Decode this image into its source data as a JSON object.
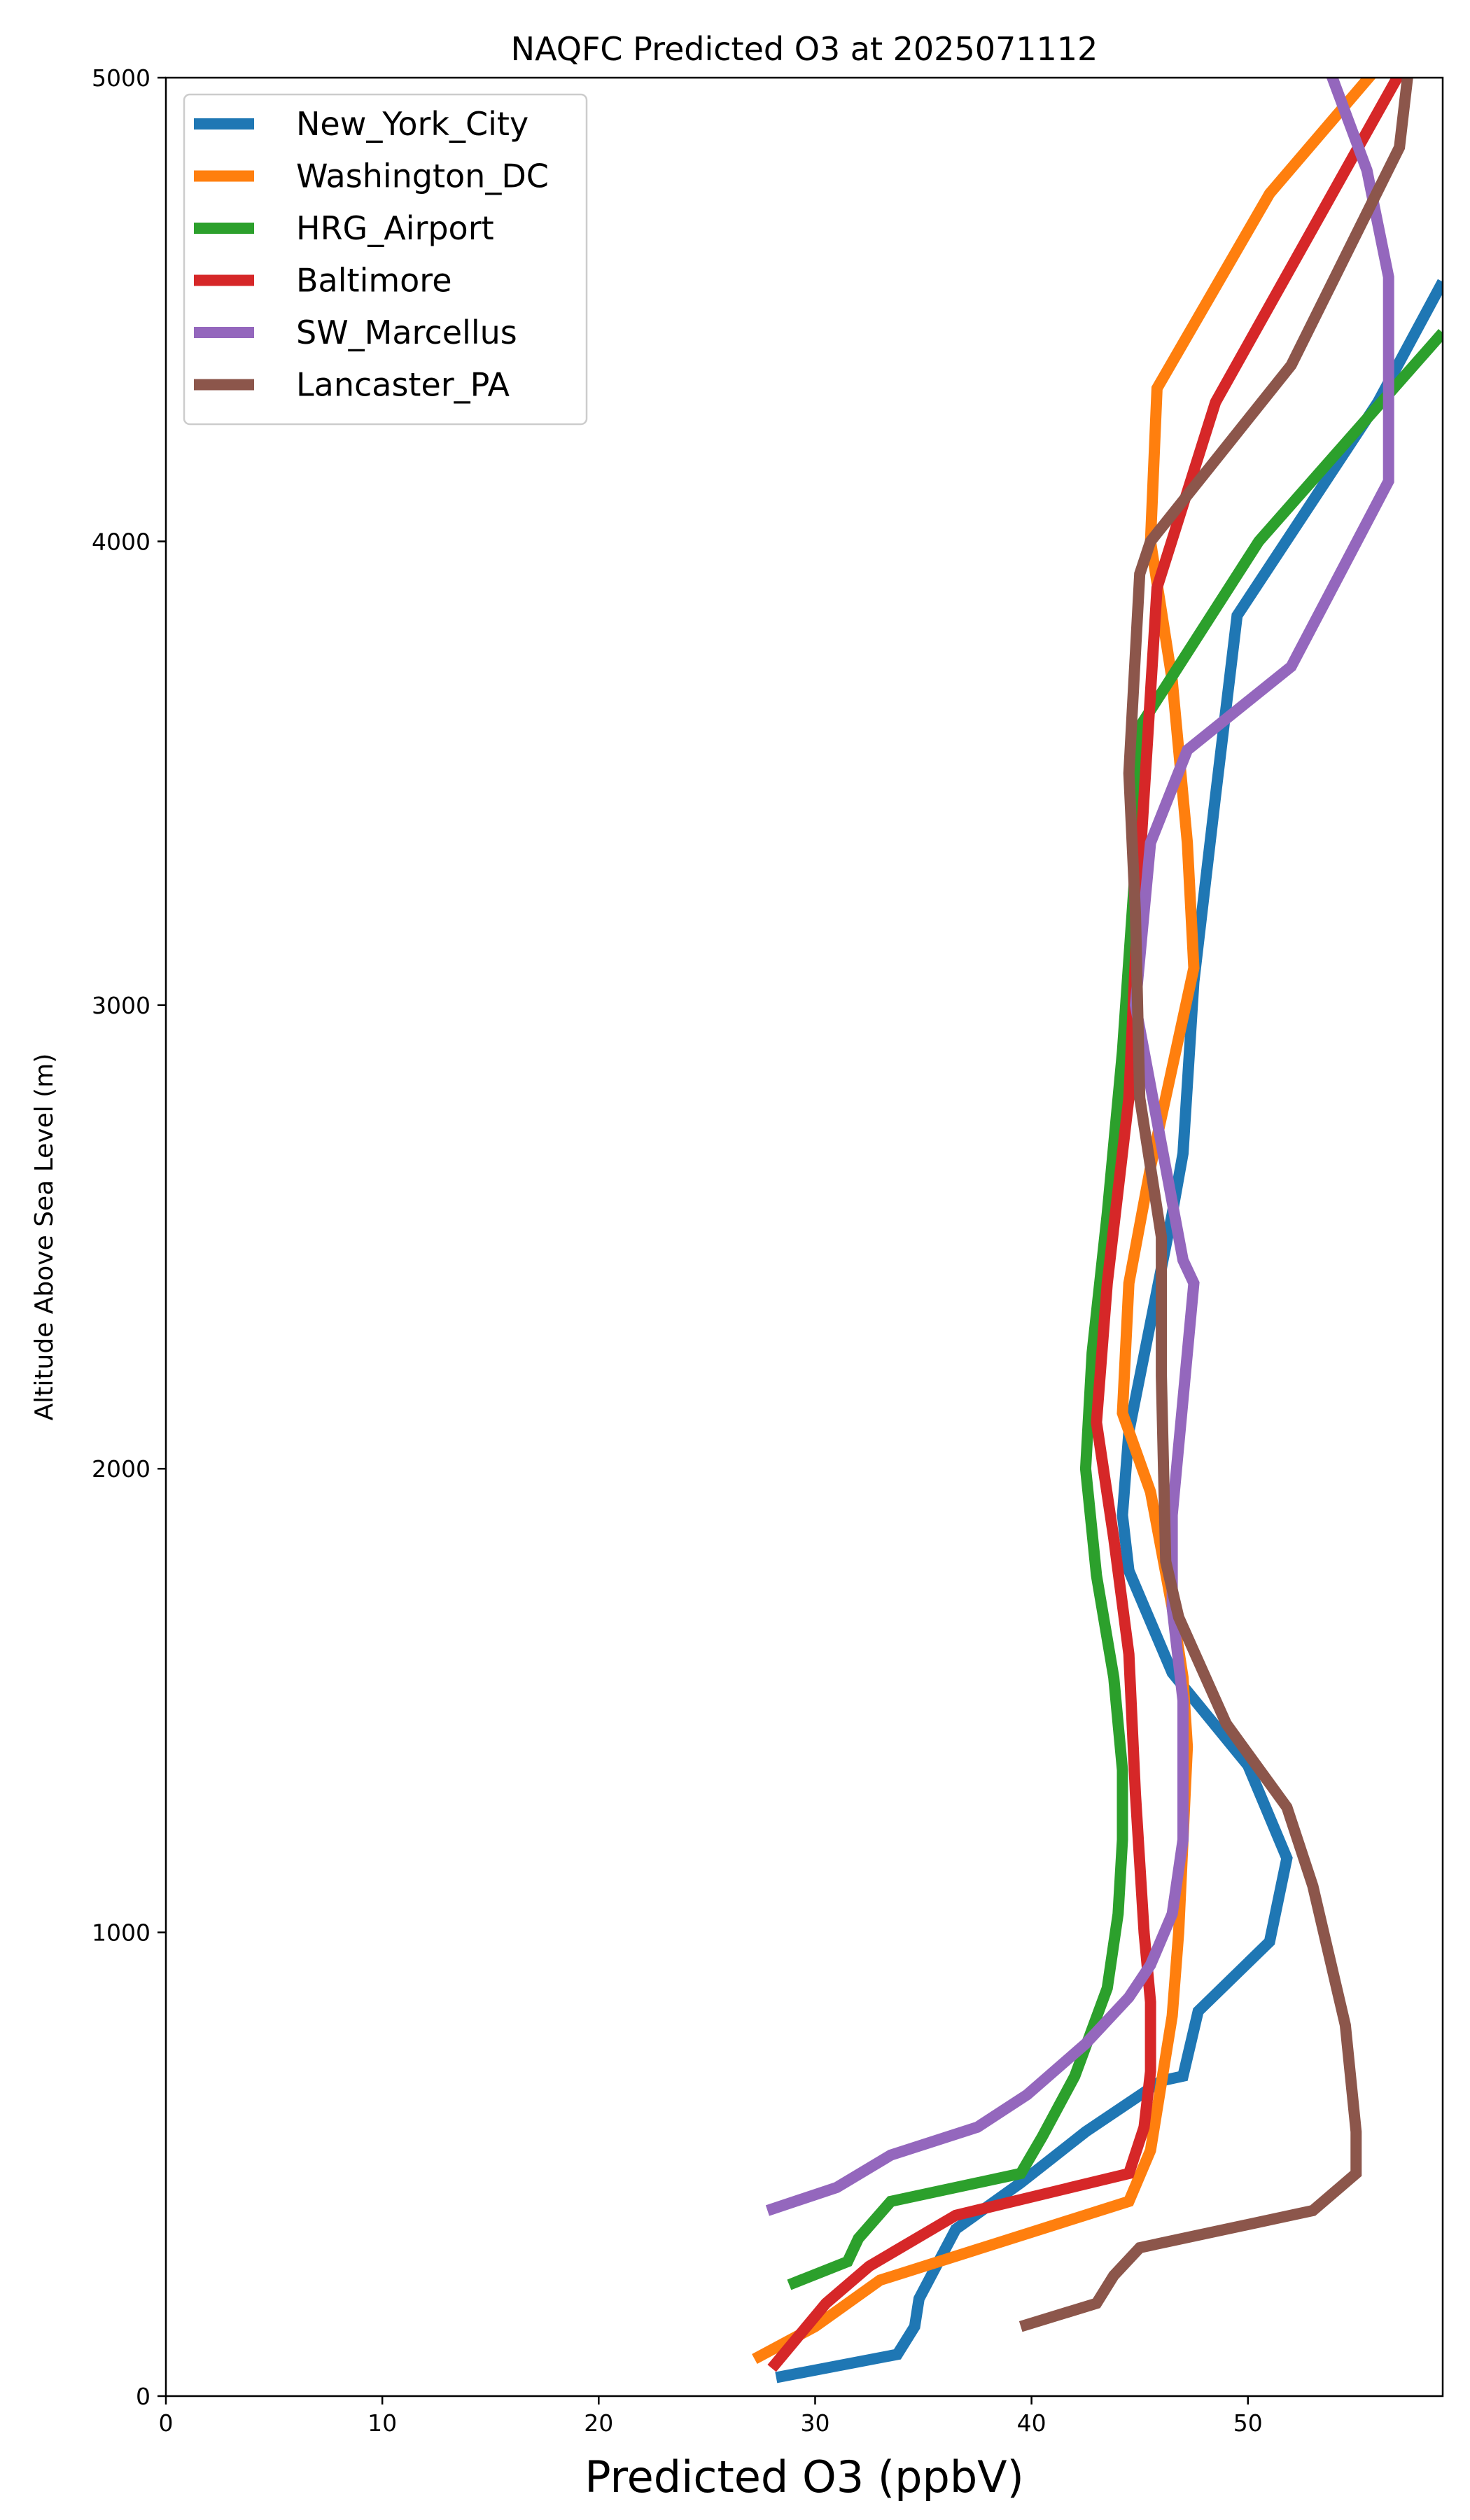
{
  "chart_data": {
    "type": "line",
    "title": "NAQFC Predicted O3 at 2025071112",
    "xlabel": "Predicted O3 (ppbV)",
    "ylabel": "Altitude Above Sea Level (m)",
    "xlim": [
      0,
      59
    ],
    "ylim": [
      0,
      5000
    ],
    "xticks": [
      0,
      10,
      20,
      30,
      40,
      50
    ],
    "yticks": [
      0,
      1000,
      2000,
      3000,
      4000,
      5000
    ],
    "grid": false,
    "legend_position": "upper-left",
    "series": [
      {
        "name": "New_York_City",
        "color": "#1f77b4",
        "points": [
          [
            28.2,
            40
          ],
          [
            33.8,
            90
          ],
          [
            34.6,
            150
          ],
          [
            34.8,
            210
          ],
          [
            36.5,
            360
          ],
          [
            39.5,
            460
          ],
          [
            42.5,
            570
          ],
          [
            46.0,
            680
          ],
          [
            47.0,
            690
          ],
          [
            47.7,
            830
          ],
          [
            51.0,
            980
          ],
          [
            51.8,
            1160
          ],
          [
            50.0,
            1360
          ],
          [
            46.5,
            1560
          ],
          [
            44.5,
            1780
          ],
          [
            44.2,
            1900
          ],
          [
            44.5,
            2080
          ],
          [
            46.5,
            2550
          ],
          [
            47.0,
            2680
          ],
          [
            47.5,
            3050
          ],
          [
            48.5,
            3450
          ],
          [
            49.5,
            3840
          ],
          [
            56.0,
            4300
          ],
          [
            59.0,
            4560
          ]
        ]
      },
      {
        "name": "Washington_DC",
        "color": "#ff7f0e",
        "points": [
          [
            27.2,
            80
          ],
          [
            30.0,
            150
          ],
          [
            33.0,
            250
          ],
          [
            44.5,
            420
          ],
          [
            45.5,
            530
          ],
          [
            46.5,
            820
          ],
          [
            46.8,
            1000
          ],
          [
            47.2,
            1400
          ],
          [
            47.0,
            1550
          ],
          [
            46.5,
            1700
          ],
          [
            45.5,
            1950
          ],
          [
            44.2,
            2120
          ],
          [
            44.5,
            2400
          ],
          [
            45.5,
            2650
          ],
          [
            47.5,
            3080
          ],
          [
            47.2,
            3350
          ],
          [
            46.5,
            3700
          ],
          [
            45.5,
            4000
          ],
          [
            45.8,
            4330
          ],
          [
            51.0,
            4750
          ],
          [
            56.5,
            5050
          ]
        ]
      },
      {
        "name": "HRG_Airport",
        "color": "#2ca02c",
        "points": [
          [
            28.8,
            240
          ],
          [
            31.5,
            290
          ],
          [
            32.0,
            340
          ],
          [
            33.5,
            420
          ],
          [
            39.5,
            480
          ],
          [
            40.5,
            560
          ],
          [
            42.0,
            690
          ],
          [
            43.5,
            880
          ],
          [
            44.0,
            1040
          ],
          [
            44.2,
            1200
          ],
          [
            44.2,
            1350
          ],
          [
            43.8,
            1550
          ],
          [
            43.0,
            1770
          ],
          [
            42.5,
            2000
          ],
          [
            42.8,
            2250
          ],
          [
            43.5,
            2550
          ],
          [
            44.2,
            2900
          ],
          [
            44.8,
            3300
          ],
          [
            45.0,
            3600
          ],
          [
            50.5,
            4000
          ],
          [
            59.0,
            4450
          ]
        ]
      },
      {
        "name": "Baltimore",
        "color": "#d62728",
        "points": [
          [
            28.0,
            60
          ],
          [
            30.5,
            200
          ],
          [
            32.5,
            280
          ],
          [
            36.5,
            390
          ],
          [
            44.5,
            480
          ],
          [
            45.2,
            580
          ],
          [
            45.5,
            700
          ],
          [
            45.5,
            850
          ],
          [
            45.2,
            1000
          ],
          [
            44.8,
            1300
          ],
          [
            44.5,
            1600
          ],
          [
            43.8,
            1850
          ],
          [
            43.0,
            2100
          ],
          [
            43.5,
            2400
          ],
          [
            44.5,
            2800
          ],
          [
            45.0,
            3300
          ],
          [
            45.8,
            3900
          ],
          [
            48.5,
            4300
          ],
          [
            57.5,
            5050
          ]
        ]
      },
      {
        "name": "SW_Marcellus",
        "color": "#9467bd",
        "points": [
          [
            27.8,
            400
          ],
          [
            31.0,
            450
          ],
          [
            33.5,
            520
          ],
          [
            37.5,
            580
          ],
          [
            39.8,
            650
          ],
          [
            42.5,
            760
          ],
          [
            44.5,
            860
          ],
          [
            45.5,
            930
          ],
          [
            46.5,
            1040
          ],
          [
            47.0,
            1200
          ],
          [
            47.0,
            1500
          ],
          [
            46.5,
            1700
          ],
          [
            46.5,
            1900
          ],
          [
            47.5,
            2400
          ],
          [
            47.0,
            2450
          ],
          [
            44.8,
            3000
          ],
          [
            45.5,
            3350
          ],
          [
            47.2,
            3550
          ],
          [
            52.0,
            3730
          ],
          [
            56.5,
            4130
          ],
          [
            56.5,
            4570
          ],
          [
            55.5,
            4800
          ],
          [
            53.5,
            5050
          ]
        ]
      },
      {
        "name": "Lancaster_PA",
        "color": "#8c564b",
        "points": [
          [
            39.5,
            150
          ],
          [
            43.0,
            200
          ],
          [
            43.8,
            260
          ],
          [
            45.0,
            320
          ],
          [
            53.0,
            400
          ],
          [
            55.0,
            480
          ],
          [
            55.0,
            570
          ],
          [
            54.5,
            800
          ],
          [
            53.0,
            1100
          ],
          [
            51.8,
            1270
          ],
          [
            49.0,
            1450
          ],
          [
            46.8,
            1680
          ],
          [
            46.2,
            1800
          ],
          [
            46.0,
            2200
          ],
          [
            46.0,
            2500
          ],
          [
            45.0,
            2800
          ],
          [
            44.8,
            3200
          ],
          [
            44.5,
            3500
          ],
          [
            45.0,
            3930
          ],
          [
            45.5,
            4000
          ],
          [
            52.0,
            4380
          ],
          [
            57.0,
            4850
          ],
          [
            57.5,
            5050
          ]
        ]
      }
    ]
  }
}
